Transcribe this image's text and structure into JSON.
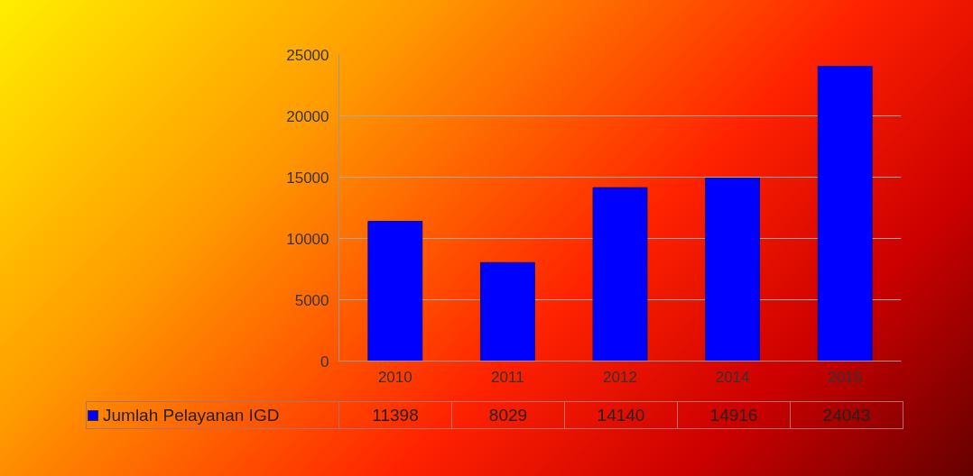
{
  "chart_data": {
    "type": "bar",
    "categories": [
      "2010",
      "2011",
      "2012",
      "2014",
      "2015"
    ],
    "series": [
      {
        "name": "Jumlah Pelayanan IGD",
        "color": "#0000ff",
        "values": [
          11398,
          8029,
          14140,
          14916,
          24043
        ]
      }
    ],
    "ylim": [
      0,
      25000
    ],
    "yticks": [
      0,
      5000,
      10000,
      15000,
      20000,
      25000
    ],
    "grid": "y",
    "data_labels": true,
    "legend": "bottom left"
  }
}
